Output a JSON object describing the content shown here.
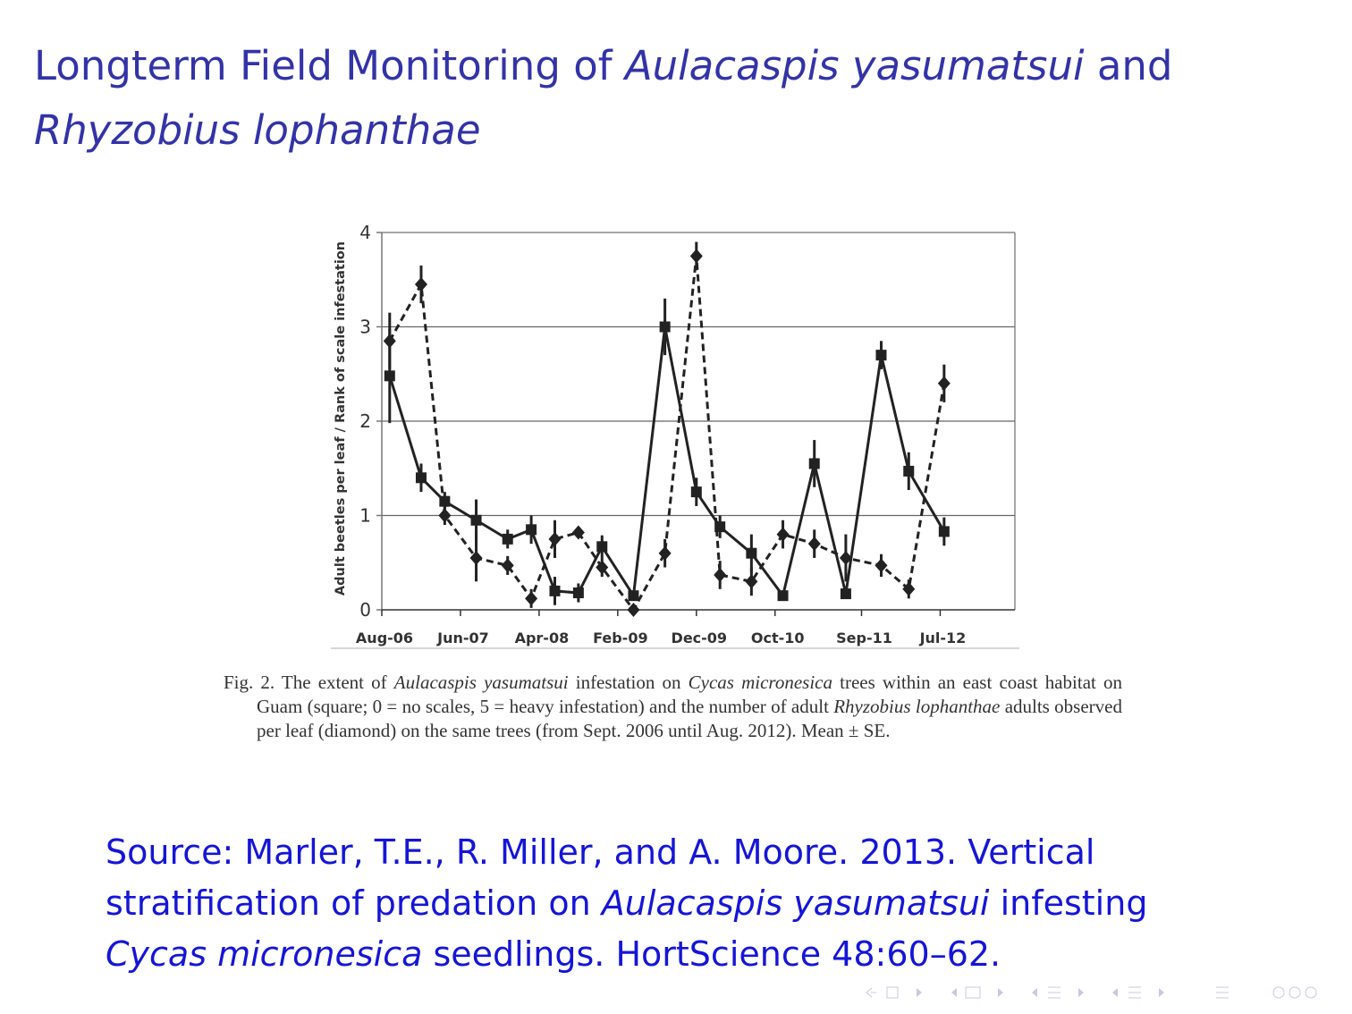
{
  "slide": {
    "title": [
      {
        "text": "Longterm Field Monitoring of "
      },
      {
        "text": "Aulacaspis yasumatsui",
        "style": "italic"
      },
      {
        "text": " and "
      },
      {
        "text": "Rhyzobius lophanthae",
        "style": "italic"
      }
    ],
    "caption": [
      {
        "text": "Fig. 2. The extent of "
      },
      {
        "text": "Aulacaspis yasumatsui",
        "style": "italic"
      },
      {
        "text": " infestation on "
      },
      {
        "text": "Cycas micronesica",
        "style": "italic"
      },
      {
        "text": " trees within an east coast habitat on Guam (square; 0 = no scales, 5 = heavy infestation) and the number of adult "
      },
      {
        "text": "Rhyzobius lophanthae",
        "style": "italic"
      },
      {
        "text": " adults observed per leaf (diamond) on the same trees (from Sept. 2006 until Aug. 2012). Mean ± SE."
      }
    ],
    "source": [
      {
        "text": "Source: Marler, T.E., R. Miller, and A. Moore. 2013. Vertical stratification of predation on "
      },
      {
        "text": "Aulacaspis yasumatsui",
        "style": "italic"
      },
      {
        "text": " infesting "
      },
      {
        "text": "Cycas micronesica",
        "style": "italic"
      },
      {
        "text": " seedlings. HortScience 48:60–62."
      }
    ]
  },
  "chart_data": {
    "type": "line",
    "y_label": "Adult beetles per leaf / Rank of scale infestation",
    "x": [
      1,
      5,
      8,
      12,
      16,
      19,
      22,
      25,
      28,
      32,
      36,
      40,
      43,
      47,
      51,
      55,
      59,
      63.5,
      67,
      71.5
    ],
    "series": [
      {
        "marker": "square",
        "dash": false,
        "color": "#222222",
        "values": [
          2.48,
          1.4,
          1.15,
          0.95,
          0.75,
          0.85,
          0.2,
          0.18,
          0.67,
          0.15,
          3.0,
          1.25,
          0.88,
          0.6,
          0.15,
          1.55,
          0.17,
          2.7,
          1.47,
          0.83
        ],
        "errors": [
          0.5,
          0.15,
          0.1,
          0.22,
          0.1,
          0.15,
          0.15,
          0.1,
          0.12,
          0.05,
          0.3,
          0.15,
          0.12,
          0.2,
          0.05,
          0.25,
          0.05,
          0.15,
          0.2,
          0.15
        ]
      },
      {
        "marker": "diamond",
        "dash": true,
        "color": "#222222",
        "values": [
          2.85,
          3.45,
          1.0,
          0.55,
          0.47,
          0.12,
          0.75,
          0.82,
          0.45,
          0.0,
          0.6,
          3.75,
          0.37,
          0.3,
          0.8,
          0.7,
          0.55,
          0.47,
          0.22,
          2.4
        ],
        "errors": [
          0.3,
          0.2,
          0.1,
          0.25,
          0.1,
          0.1,
          0.2,
          0.05,
          0.1,
          0.05,
          0.15,
          0.15,
          0.15,
          0.15,
          0.15,
          0.15,
          0.25,
          0.12,
          0.1,
          0.2
        ]
      }
    ],
    "xlim": [
      0,
      80.5
    ],
    "xticks": [
      {
        "value": 0,
        "label": "Aug-06"
      },
      {
        "value": 10,
        "label": "Jun-07"
      },
      {
        "value": 20,
        "label": "Apr-08"
      },
      {
        "value": 30,
        "label": "Feb-09"
      },
      {
        "value": 40,
        "label": "Dec-09"
      },
      {
        "value": 50,
        "label": "Oct-10"
      },
      {
        "value": 61,
        "label": "Sep-11"
      },
      {
        "value": 71,
        "label": "Jul-12"
      }
    ],
    "ylim": [
      0,
      4
    ],
    "yticks": [
      0,
      1,
      2,
      3,
      4
    ],
    "grid": true
  }
}
